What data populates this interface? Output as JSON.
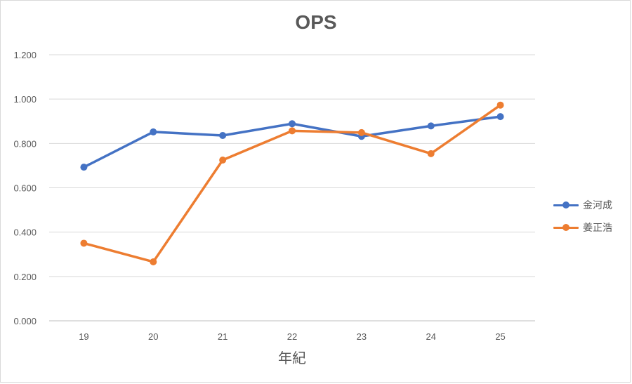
{
  "chart_data": {
    "type": "line",
    "title": "OPS",
    "xlabel": "年紀",
    "ylabel": "",
    "categories": [
      "19",
      "20",
      "21",
      "22",
      "23",
      "24",
      "25"
    ],
    "ylim": [
      0,
      1.2
    ],
    "yticks": [
      "0.000",
      "0.200",
      "0.400",
      "0.600",
      "0.800",
      "1.000",
      "1.200"
    ],
    "ytick_values": [
      0,
      0.2,
      0.4,
      0.6,
      0.8,
      1.0,
      1.2
    ],
    "grid": true,
    "legend_position": "right",
    "series": [
      {
        "name": "金河成",
        "color": "#4472c4",
        "values": [
          0.693,
          0.852,
          0.836,
          0.889,
          0.832,
          0.879,
          0.921
        ]
      },
      {
        "name": "姜正浩",
        "color": "#ed7d31",
        "values": [
          0.35,
          0.266,
          0.725,
          0.857,
          0.849,
          0.754,
          0.973
        ]
      }
    ]
  }
}
